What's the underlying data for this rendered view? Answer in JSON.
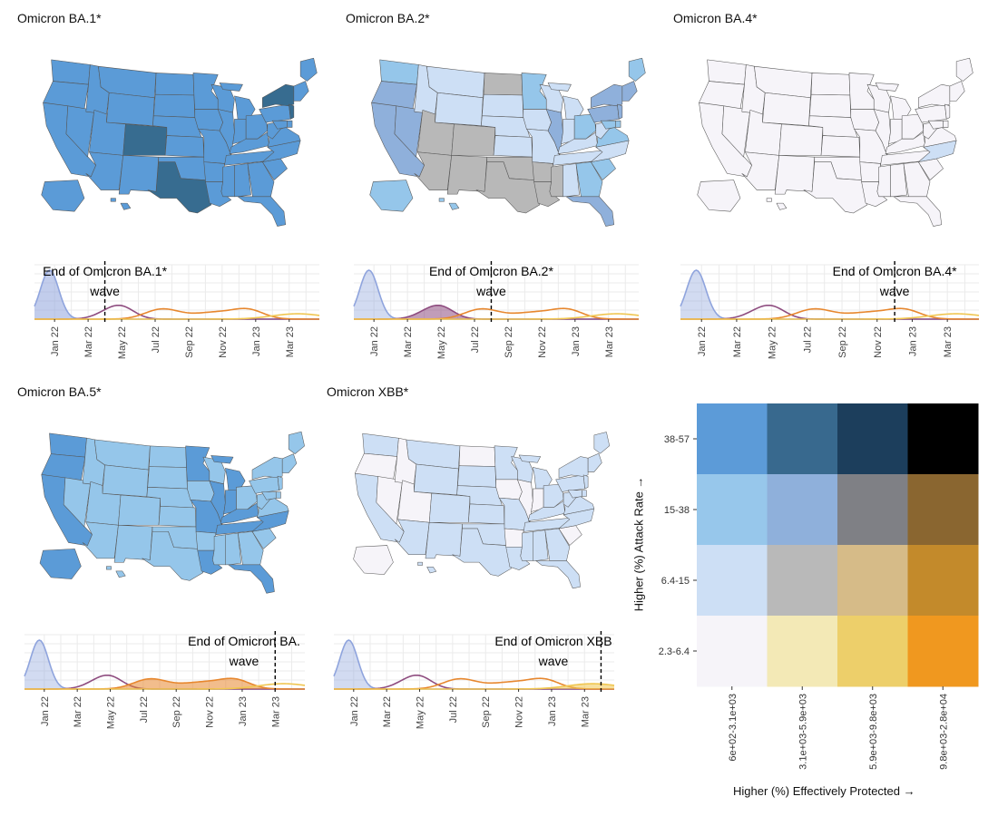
{
  "panels": [
    {
      "title": "Omicron BA.1*",
      "wave_label_line1": "End of Omicron BA.1*",
      "wave_label_line2": "wave",
      "end_of_wave": "Apr 22",
      "states": {
        "WA": "s2",
        "OR": "s2",
        "CA": "s2",
        "NV": "s2",
        "ID": "s2",
        "MT": "s2",
        "WY": "s2",
        "UT": "s2",
        "AZ": "s2",
        "CO": "s3",
        "NM": "s2",
        "ND": "s2",
        "SD": "s2",
        "NE": "s2",
        "KS": "s2",
        "OK": "s2",
        "TX": "s3",
        "MN": "s2",
        "IA": "s2",
        "MO": "s2",
        "AR": "s2",
        "LA": "s2",
        "WI": "s2",
        "IL": "s2",
        "MI": "s2",
        "IN": "s2",
        "OH": "s2",
        "KY": "s2",
        "TN": "s2",
        "MS": "s2",
        "AL": "s2",
        "GA": "s2",
        "FL": "s2",
        "SC": "s2",
        "NC": "s2",
        "VA": "s2",
        "WV": "s2",
        "PA": "s2",
        "NY": "s3",
        "NJ": "s3",
        "DE": "s2",
        "MD": "s2",
        "NE_REG": "s2",
        "ME": "s2",
        "AK": "s2",
        "HI": "s2"
      }
    },
    {
      "title": "Omicron BA.2*",
      "wave_label_line1": "End of Omicron BA.2*",
      "wave_label_line2": "wave",
      "end_of_wave": "Aug 22",
      "states": {
        "WA": "s1",
        "OR": "b1",
        "CA": "b1",
        "NV": "b1",
        "ID": "p1",
        "MT": "p1",
        "WY": "p1",
        "UT": "g",
        "AZ": "g",
        "CO": "g",
        "NM": "g",
        "ND": "g",
        "SD": "p1",
        "NE": "p1",
        "KS": "p1",
        "OK": "g",
        "TX": "g",
        "MN": "s1",
        "IA": "p1",
        "MO": "p1",
        "AR": "g",
        "LA": "g",
        "WI": "p1",
        "IL": "b1",
        "MI": "p1",
        "IN": "p1",
        "OH": "s1",
        "KY": "p1",
        "TN": "p1",
        "MS": "g",
        "AL": "p1",
        "GA": "s1",
        "FL": "b1",
        "SC": "s1",
        "NC": "p1",
        "VA": "s1",
        "WV": "p1",
        "PA": "b1",
        "NY": "b1",
        "NJ": "b1",
        "DE": "s1",
        "MD": "s1",
        "NE_REG": "b1",
        "ME": "s1",
        "AK": "s1",
        "HI": "s1"
      }
    },
    {
      "title": "Omicron BA.4*",
      "wave_label_line1": "End of Omicron BA.4*",
      "wave_label_line2": "wave",
      "end_of_wave": "Dec 22",
      "states": {
        "WA": "w",
        "OR": "w",
        "CA": "w",
        "NV": "w",
        "ID": "w",
        "MT": "w",
        "WY": "w",
        "UT": "w",
        "AZ": "w",
        "CO": "w",
        "NM": "w",
        "ND": "w",
        "SD": "w",
        "NE": "w",
        "KS": "w",
        "OK": "w",
        "TX": "w",
        "MN": "w",
        "IA": "w",
        "MO": "w",
        "AR": "w",
        "LA": "w",
        "WI": "w",
        "IL": "w",
        "MI": "w",
        "IN": "w",
        "OH": "w",
        "KY": "w",
        "TN": "w",
        "MS": "w",
        "AL": "w",
        "GA": "w",
        "FL": "w",
        "SC": "w",
        "NC": "p1",
        "VA": "w",
        "WV": "w",
        "PA": "w",
        "NY": "w",
        "NJ": "w",
        "DE": "w",
        "MD": "w",
        "NE_REG": "w",
        "ME": "w",
        "AK": "w",
        "HI": "w"
      }
    },
    {
      "title": "Omicron BA.5*",
      "wave_label_line1": "End of Omicron BA.",
      "wave_label_line2": "wave",
      "end_of_wave": "Mar 23",
      "states": {
        "WA": "s2",
        "OR": "s2",
        "CA": "s2",
        "NV": "s1",
        "ID": "s1",
        "MT": "s1",
        "WY": "s1",
        "UT": "s1",
        "AZ": "s1",
        "CO": "s1",
        "NM": "s1",
        "ND": "s1",
        "SD": "s1",
        "NE": "s1",
        "KS": "s1",
        "OK": "s1",
        "TX": "s1",
        "MN": "s2",
        "IA": "s1",
        "MO": "s2",
        "AR": "s1",
        "LA": "s2",
        "WI": "s1",
        "IL": "s2",
        "MI": "s2",
        "IN": "s2",
        "OH": "s1",
        "KY": "s2",
        "TN": "s2",
        "MS": "s1",
        "AL": "s1",
        "GA": "s1",
        "FL": "s2",
        "SC": "s1",
        "NC": "s2",
        "VA": "s1",
        "WV": "s1",
        "PA": "s1",
        "NY": "s1",
        "NJ": "s1",
        "DE": "s1",
        "MD": "s1",
        "NE_REG": "s1",
        "ME": "s1",
        "AK": "s2",
        "HI": "s1"
      }
    },
    {
      "title": "Omicron XBB*",
      "wave_label_line1": "End of Omicron XBB",
      "wave_label_line2": "wave",
      "end_of_wave": "Apr 23",
      "states": {
        "WA": "p1",
        "OR": "w",
        "CA": "p1",
        "NV": "w",
        "ID": "w",
        "MT": "p1",
        "WY": "p1",
        "UT": "w",
        "AZ": "p1",
        "CO": "p1",
        "NM": "p1",
        "ND": "w",
        "SD": "p1",
        "NE": "p1",
        "KS": "p1",
        "OK": "p1",
        "TX": "p1",
        "MN": "p1",
        "IA": "w",
        "MO": "p1",
        "AR": "w",
        "LA": "p1",
        "WI": "p1",
        "IL": "w",
        "MI": "p1",
        "IN": "w",
        "OH": "p1",
        "KY": "p1",
        "TN": "p1",
        "MS": "p1",
        "AL": "p1",
        "GA": "p1",
        "FL": "p1",
        "SC": "w",
        "NC": "p1",
        "VA": "p1",
        "WV": "p1",
        "PA": "p1",
        "NY": "p1",
        "NJ": "p1",
        "DE": "p1",
        "MD": "p1",
        "NE_REG": "p1",
        "ME": "p1",
        "AK": "w",
        "HI": "p1"
      }
    }
  ],
  "ts_ticks": [
    "Jan 22",
    "Mar 22",
    "May 22",
    "Jul 22",
    "Sep 22",
    "Nov 22",
    "Jan 23",
    "Mar 23"
  ],
  "palette": {
    "w": "#f6f4f9",
    "p1": "#cddff5",
    "s1": "#95c6ea",
    "s2": "#5b9bd7",
    "g": "#b8b8b8",
    "b1": "#8fb0db",
    "s3": "#376c90",
    "sand": "#d6bb88"
  },
  "series_colors": {
    "ba1": "#8fa4dd",
    "ba2": "#8e4c7f",
    "ba4": "#e7872e",
    "ba5": "#e48a3a",
    "xbb": "#f0c650"
  },
  "legend": {
    "y_labels": [
      "38-57",
      "15-38",
      "6.4-15",
      "2.3-6.4"
    ],
    "x_labels": [
      "6e+02-3.1e+03",
      "3.1e+03-5.9e+03",
      "5.9e+03-9.8e+03",
      "9.8e+03-2.8e+04"
    ],
    "x_title": "Higher (%) Effectively Protected →",
    "y_title": "Higher (%) Attack Rate →",
    "grid": [
      [
        "#5c9bd8",
        "#38698e",
        "#1c3e5c",
        "#000000"
      ],
      [
        "#97c7eb",
        "#8fb0db",
        "#7f8085",
        "#8a6630"
      ],
      [
        "#cddff5",
        "#b9b9b9",
        "#d6bb88",
        "#c38a2b"
      ],
      [
        "#f6f4f9",
        "#f3e9b6",
        "#edcf6a",
        "#f0981f"
      ]
    ]
  }
}
